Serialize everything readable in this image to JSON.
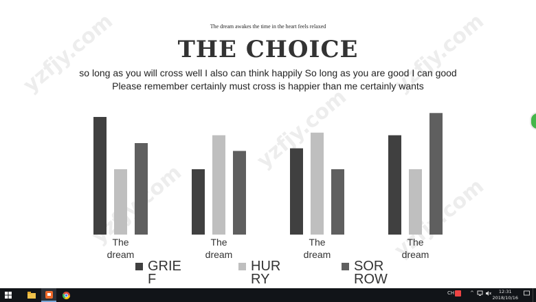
{
  "slide": {
    "subtitle": "The dream awakes the time  in the heart feels relaxed",
    "title": "THE CHOICE",
    "body_line1": "so long as you will cross well I also can think happily So long as you are good  I can good",
    "body_line2": "Please remember  certainly must cross is happier than me certainly wants"
  },
  "chart_data": {
    "type": "bar",
    "categories": [
      "The dream",
      "The dream",
      "The dream",
      "The dream"
    ],
    "series": [
      {
        "name": "GRIEF",
        "color": "#404040",
        "values": [
          4.5,
          2.5,
          3.3,
          3.8
        ]
      },
      {
        "name": "HURRY",
        "color": "#bfbfbf",
        "values": [
          2.5,
          3.8,
          3.9,
          2.5
        ]
      },
      {
        "name": "SORROW",
        "color": "#5f5f5f",
        "values": [
          3.5,
          3.2,
          2.5,
          4.65
        ]
      }
    ],
    "ylim": [
      0,
      5
    ],
    "grid": false,
    "legend": "bottom"
  },
  "taskbar": {
    "time": "12:31",
    "date": "2018/10/16",
    "ime": "CH",
    "icons": [
      "windows-start-icon",
      "file-explorer-icon",
      "presentation-app-icon",
      "chrome-icon"
    ]
  },
  "watermark": "yzfjy.com"
}
